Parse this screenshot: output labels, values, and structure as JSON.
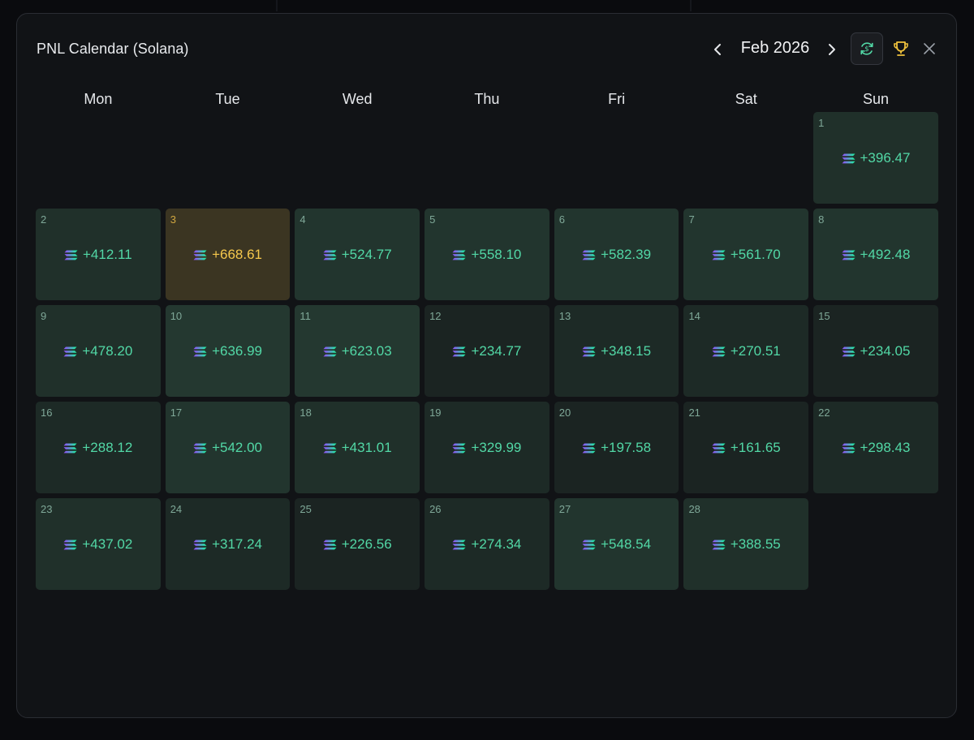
{
  "modal": {
    "title": "PNL Calendar (Solana)",
    "month_label": "Feb 2026",
    "icons": {
      "prev": "chevron-left-icon",
      "next": "chevron-right-icon",
      "current": "currency-sync-icon",
      "trophy": "trophy-icon",
      "close": "close-icon"
    }
  },
  "colors": {
    "positive": "#52d8a6",
    "best": "#f5c84c",
    "best_bg": "#3b3522",
    "day_number": "#7fa898"
  },
  "weekdays": [
    "Mon",
    "Tue",
    "Wed",
    "Thu",
    "Fri",
    "Sat",
    "Sun"
  ],
  "calendar": {
    "leading_blanks": 6,
    "days": [
      {
        "day": "1",
        "pnl": "+396.47",
        "value": 396.47
      },
      {
        "day": "2",
        "pnl": "+412.11",
        "value": 412.11
      },
      {
        "day": "3",
        "pnl": "+668.61",
        "value": 668.61,
        "best": true
      },
      {
        "day": "4",
        "pnl": "+524.77",
        "value": 524.77
      },
      {
        "day": "5",
        "pnl": "+558.10",
        "value": 558.1
      },
      {
        "day": "6",
        "pnl": "+582.39",
        "value": 582.39
      },
      {
        "day": "7",
        "pnl": "+561.70",
        "value": 561.7
      },
      {
        "day": "8",
        "pnl": "+492.48",
        "value": 492.48
      },
      {
        "day": "9",
        "pnl": "+478.20",
        "value": 478.2
      },
      {
        "day": "10",
        "pnl": "+636.99",
        "value": 636.99
      },
      {
        "day": "11",
        "pnl": "+623.03",
        "value": 623.03
      },
      {
        "day": "12",
        "pnl": "+234.77",
        "value": 234.77
      },
      {
        "day": "13",
        "pnl": "+348.15",
        "value": 348.15
      },
      {
        "day": "14",
        "pnl": "+270.51",
        "value": 270.51
      },
      {
        "day": "15",
        "pnl": "+234.05",
        "value": 234.05
      },
      {
        "day": "16",
        "pnl": "+288.12",
        "value": 288.12
      },
      {
        "day": "17",
        "pnl": "+542.00",
        "value": 542.0
      },
      {
        "day": "18",
        "pnl": "+431.01",
        "value": 431.01
      },
      {
        "day": "19",
        "pnl": "+329.99",
        "value": 329.99
      },
      {
        "day": "20",
        "pnl": "+197.58",
        "value": 197.58
      },
      {
        "day": "21",
        "pnl": "+161.65",
        "value": 161.65
      },
      {
        "day": "22",
        "pnl": "+298.43",
        "value": 298.43
      },
      {
        "day": "23",
        "pnl": "+437.02",
        "value": 437.02
      },
      {
        "day": "24",
        "pnl": "+317.24",
        "value": 317.24
      },
      {
        "day": "25",
        "pnl": "+226.56",
        "value": 226.56
      },
      {
        "day": "26",
        "pnl": "+274.34",
        "value": 274.34
      },
      {
        "day": "27",
        "pnl": "+548.54",
        "value": 548.54
      },
      {
        "day": "28",
        "pnl": "+388.55",
        "value": 388.55
      }
    ]
  }
}
